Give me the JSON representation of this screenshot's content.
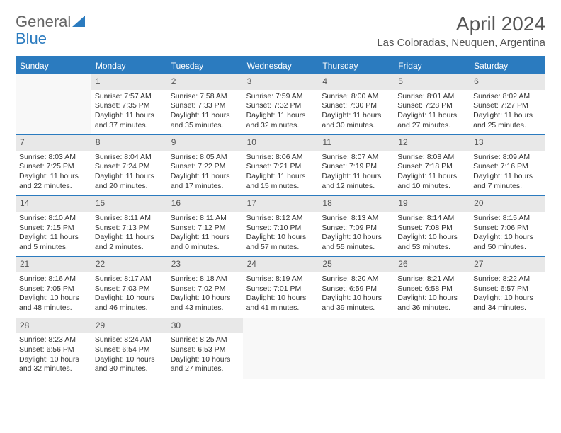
{
  "logo": {
    "text1": "General",
    "text2": "Blue"
  },
  "title": "April 2024",
  "location": "Las Coloradas, Neuquen, Argentina",
  "day_names": [
    "Sunday",
    "Monday",
    "Tuesday",
    "Wednesday",
    "Thursday",
    "Friday",
    "Saturday"
  ],
  "colors": {
    "accent": "#2b7bbf",
    "header_bg": "#2b7bbf",
    "header_text": "#ffffff",
    "daynum_bg": "#e8e8e8",
    "text": "#333333",
    "title_text": "#555555"
  },
  "weeks": [
    [
      {
        "empty": true
      },
      {
        "n": "1",
        "sunrise": "Sunrise: 7:57 AM",
        "sunset": "Sunset: 7:35 PM",
        "day1": "Daylight: 11 hours",
        "day2": "and 37 minutes."
      },
      {
        "n": "2",
        "sunrise": "Sunrise: 7:58 AM",
        "sunset": "Sunset: 7:33 PM",
        "day1": "Daylight: 11 hours",
        "day2": "and 35 minutes."
      },
      {
        "n": "3",
        "sunrise": "Sunrise: 7:59 AM",
        "sunset": "Sunset: 7:32 PM",
        "day1": "Daylight: 11 hours",
        "day2": "and 32 minutes."
      },
      {
        "n": "4",
        "sunrise": "Sunrise: 8:00 AM",
        "sunset": "Sunset: 7:30 PM",
        "day1": "Daylight: 11 hours",
        "day2": "and 30 minutes."
      },
      {
        "n": "5",
        "sunrise": "Sunrise: 8:01 AM",
        "sunset": "Sunset: 7:28 PM",
        "day1": "Daylight: 11 hours",
        "day2": "and 27 minutes."
      },
      {
        "n": "6",
        "sunrise": "Sunrise: 8:02 AM",
        "sunset": "Sunset: 7:27 PM",
        "day1": "Daylight: 11 hours",
        "day2": "and 25 minutes."
      }
    ],
    [
      {
        "n": "7",
        "sunrise": "Sunrise: 8:03 AM",
        "sunset": "Sunset: 7:25 PM",
        "day1": "Daylight: 11 hours",
        "day2": "and 22 minutes."
      },
      {
        "n": "8",
        "sunrise": "Sunrise: 8:04 AM",
        "sunset": "Sunset: 7:24 PM",
        "day1": "Daylight: 11 hours",
        "day2": "and 20 minutes."
      },
      {
        "n": "9",
        "sunrise": "Sunrise: 8:05 AM",
        "sunset": "Sunset: 7:22 PM",
        "day1": "Daylight: 11 hours",
        "day2": "and 17 minutes."
      },
      {
        "n": "10",
        "sunrise": "Sunrise: 8:06 AM",
        "sunset": "Sunset: 7:21 PM",
        "day1": "Daylight: 11 hours",
        "day2": "and 15 minutes."
      },
      {
        "n": "11",
        "sunrise": "Sunrise: 8:07 AM",
        "sunset": "Sunset: 7:19 PM",
        "day1": "Daylight: 11 hours",
        "day2": "and 12 minutes."
      },
      {
        "n": "12",
        "sunrise": "Sunrise: 8:08 AM",
        "sunset": "Sunset: 7:18 PM",
        "day1": "Daylight: 11 hours",
        "day2": "and 10 minutes."
      },
      {
        "n": "13",
        "sunrise": "Sunrise: 8:09 AM",
        "sunset": "Sunset: 7:16 PM",
        "day1": "Daylight: 11 hours",
        "day2": "and 7 minutes."
      }
    ],
    [
      {
        "n": "14",
        "sunrise": "Sunrise: 8:10 AM",
        "sunset": "Sunset: 7:15 PM",
        "day1": "Daylight: 11 hours",
        "day2": "and 5 minutes."
      },
      {
        "n": "15",
        "sunrise": "Sunrise: 8:11 AM",
        "sunset": "Sunset: 7:13 PM",
        "day1": "Daylight: 11 hours",
        "day2": "and 2 minutes."
      },
      {
        "n": "16",
        "sunrise": "Sunrise: 8:11 AM",
        "sunset": "Sunset: 7:12 PM",
        "day1": "Daylight: 11 hours",
        "day2": "and 0 minutes."
      },
      {
        "n": "17",
        "sunrise": "Sunrise: 8:12 AM",
        "sunset": "Sunset: 7:10 PM",
        "day1": "Daylight: 10 hours",
        "day2": "and 57 minutes."
      },
      {
        "n": "18",
        "sunrise": "Sunrise: 8:13 AM",
        "sunset": "Sunset: 7:09 PM",
        "day1": "Daylight: 10 hours",
        "day2": "and 55 minutes."
      },
      {
        "n": "19",
        "sunrise": "Sunrise: 8:14 AM",
        "sunset": "Sunset: 7:08 PM",
        "day1": "Daylight: 10 hours",
        "day2": "and 53 minutes."
      },
      {
        "n": "20",
        "sunrise": "Sunrise: 8:15 AM",
        "sunset": "Sunset: 7:06 PM",
        "day1": "Daylight: 10 hours",
        "day2": "and 50 minutes."
      }
    ],
    [
      {
        "n": "21",
        "sunrise": "Sunrise: 8:16 AM",
        "sunset": "Sunset: 7:05 PM",
        "day1": "Daylight: 10 hours",
        "day2": "and 48 minutes."
      },
      {
        "n": "22",
        "sunrise": "Sunrise: 8:17 AM",
        "sunset": "Sunset: 7:03 PM",
        "day1": "Daylight: 10 hours",
        "day2": "and 46 minutes."
      },
      {
        "n": "23",
        "sunrise": "Sunrise: 8:18 AM",
        "sunset": "Sunset: 7:02 PM",
        "day1": "Daylight: 10 hours",
        "day2": "and 43 minutes."
      },
      {
        "n": "24",
        "sunrise": "Sunrise: 8:19 AM",
        "sunset": "Sunset: 7:01 PM",
        "day1": "Daylight: 10 hours",
        "day2": "and 41 minutes."
      },
      {
        "n": "25",
        "sunrise": "Sunrise: 8:20 AM",
        "sunset": "Sunset: 6:59 PM",
        "day1": "Daylight: 10 hours",
        "day2": "and 39 minutes."
      },
      {
        "n": "26",
        "sunrise": "Sunrise: 8:21 AM",
        "sunset": "Sunset: 6:58 PM",
        "day1": "Daylight: 10 hours",
        "day2": "and 36 minutes."
      },
      {
        "n": "27",
        "sunrise": "Sunrise: 8:22 AM",
        "sunset": "Sunset: 6:57 PM",
        "day1": "Daylight: 10 hours",
        "day2": "and 34 minutes."
      }
    ],
    [
      {
        "n": "28",
        "sunrise": "Sunrise: 8:23 AM",
        "sunset": "Sunset: 6:56 PM",
        "day1": "Daylight: 10 hours",
        "day2": "and 32 minutes."
      },
      {
        "n": "29",
        "sunrise": "Sunrise: 8:24 AM",
        "sunset": "Sunset: 6:54 PM",
        "day1": "Daylight: 10 hours",
        "day2": "and 30 minutes."
      },
      {
        "n": "30",
        "sunrise": "Sunrise: 8:25 AM",
        "sunset": "Sunset: 6:53 PM",
        "day1": "Daylight: 10 hours",
        "day2": "and 27 minutes."
      },
      {
        "empty": true
      },
      {
        "empty": true
      },
      {
        "empty": true
      },
      {
        "empty": true
      }
    ]
  ]
}
